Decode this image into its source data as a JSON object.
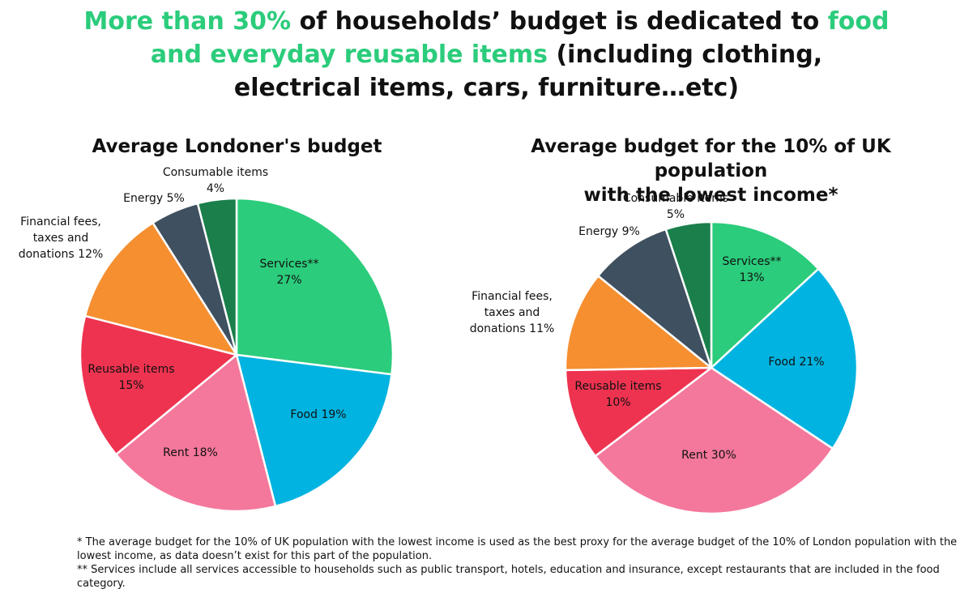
{
  "headline": {
    "p1_accent": "More than 30%",
    "p2": " of households’ budget is dedicated to ",
    "p3_accent": "food",
    "p4_accent": "and everyday reusable items",
    "p5": " (including clothing,",
    "p6": "electrical items, cars, furniture…etc)"
  },
  "colors": {
    "accent": "#2bcc7b",
    "services": "#2bcc7b",
    "food": "#00b3e0",
    "rent": "#f4789b",
    "reusable": "#ee3350",
    "financial": "#f58f30",
    "energy": "#3f5060",
    "consumable": "#1a7f4b"
  },
  "chart_data": [
    {
      "type": "pie",
      "title": "Average Londoner's budget",
      "slices": [
        {
          "key": "services",
          "label": [
            "Services**",
            "27%"
          ],
          "value": 27
        },
        {
          "key": "food",
          "label": [
            "Food 19%"
          ],
          "value": 19
        },
        {
          "key": "rent",
          "label": [
            "Rent 18%"
          ],
          "value": 18
        },
        {
          "key": "reusable",
          "label": [
            "Reusable items",
            "15%"
          ],
          "value": 15
        },
        {
          "key": "financial",
          "label": [
            "Financial fees,",
            "taxes and",
            "donations 12%"
          ],
          "value": 12
        },
        {
          "key": "energy",
          "label": [
            "Energy 5%"
          ],
          "value": 5
        },
        {
          "key": "consumable",
          "label": [
            "Consumable items",
            "4%"
          ],
          "value": 4
        }
      ]
    },
    {
      "type": "pie",
      "title_lines": [
        "Average budget for the 10% of UK population",
        "with the lowest income*"
      ],
      "slices": [
        {
          "key": "services",
          "label": [
            "Services**",
            "13%"
          ],
          "value": 13
        },
        {
          "key": "food",
          "label": [
            "Food 21%"
          ],
          "value": 21
        },
        {
          "key": "rent",
          "label": [
            "Rent 30%"
          ],
          "value": 30
        },
        {
          "key": "reusable",
          "label": [
            "Reusable items",
            "10%"
          ],
          "value": 10
        },
        {
          "key": "financial",
          "label": [
            "Financial fees,",
            "taxes and",
            "donations 11%"
          ],
          "value": 11
        },
        {
          "key": "energy",
          "label": [
            "Energy 9%"
          ],
          "value": 9
        },
        {
          "key": "consumable",
          "label": [
            "Consumable items",
            "5%"
          ],
          "value": 5
        }
      ]
    }
  ],
  "footnotes": {
    "note1": "* The average budget for the 10% of UK population with the lowest income is used as the best proxy for the average budget of the 10% of London population with the lowest income, as data doesn’t exist for this part of the population.",
    "note2": "** Services include all services accessible to households such as public transport, hotels, education and insurance, except restaurants that are included in the food category."
  }
}
